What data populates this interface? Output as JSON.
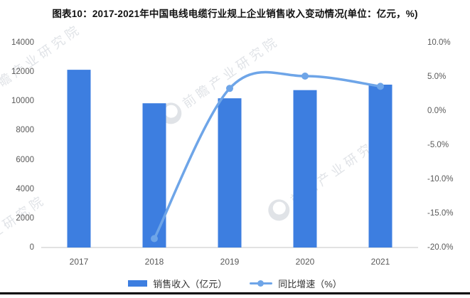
{
  "colors": {
    "bar": "#3d7ee0",
    "line": "#6ea5e8",
    "axis_text": "#595959",
    "baseline": "#d9d9d9",
    "watermark": "#c3c8d0",
    "bottom_rule": "#000000"
  },
  "watermark": {
    "text": "前瞻产业研究院"
  },
  "legend": {
    "items": [
      {
        "label": "销售收入（亿元）",
        "swatch": "bar-swatch"
      },
      {
        "label": "同比增速（%）",
        "swatch": "line-marker"
      }
    ]
  },
  "chart_data": {
    "type": "bar",
    "title": "图表10：2017-2021年中国电线电缆行业规上企业销售收入变动情况(单位：亿元，%)",
    "categories": [
      "2017",
      "2018",
      "2019",
      "2020",
      "2021"
    ],
    "series": [
      {
        "name": "销售收入（亿元）",
        "type": "bar",
        "axis": "left",
        "values": [
          12150,
          9860,
          10200,
          10760,
          11130
        ]
      },
      {
        "name": "同比增速（%）",
        "type": "line",
        "axis": "right",
        "smooth": true,
        "values": [
          null,
          -18.7,
          3.3,
          5.1,
          3.6
        ]
      }
    ],
    "left_axis": {
      "min": 0,
      "max": 14000,
      "step": 2000,
      "ticks": [
        "14000",
        "12000",
        "10000",
        "8000",
        "6000",
        "4000",
        "2000",
        "0"
      ]
    },
    "right_axis": {
      "min": -20,
      "max": 10,
      "step": 5,
      "suffix": "%",
      "ticks": [
        "10.0%",
        "5.0%",
        "0.0%",
        "-5.0%",
        "-10.0%",
        "-15.0%",
        "-20.0%"
      ]
    },
    "grid": false,
    "legend_position": "bottom"
  }
}
